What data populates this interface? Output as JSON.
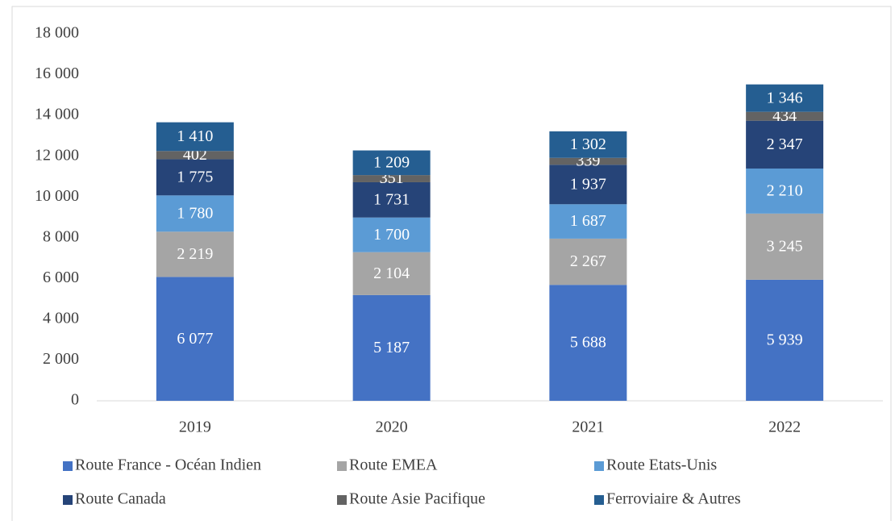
{
  "chart_data": {
    "type": "stacked_bar",
    "categories": [
      "2019",
      "2020",
      "2021",
      "2022"
    ],
    "series": [
      {
        "name": "Route France - Océan Indien",
        "color": "#4472c4",
        "values": [
          6077,
          5187,
          5688,
          5939
        ],
        "value_labels": [
          "6 077",
          "5 187",
          "5 688",
          "5 939"
        ]
      },
      {
        "name": "Route EMEA",
        "color": "#a5a5a5",
        "values": [
          2219,
          2104,
          2267,
          3245
        ],
        "value_labels": [
          "2 219",
          "2 104",
          "2 267",
          "3 245"
        ]
      },
      {
        "name": "Route Etats-Unis",
        "color": "#5b9bd5",
        "values": [
          1780,
          1700,
          1687,
          2210
        ],
        "value_labels": [
          "1 780",
          "1 700",
          "1 687",
          "2 210"
        ]
      },
      {
        "name": "Route Canada",
        "color": "#264478",
        "values": [
          1775,
          1731,
          1937,
          2347
        ],
        "value_labels": [
          "1 775",
          "1 731",
          "1 937",
          "2 347"
        ]
      },
      {
        "name": "Route Asie Pacifique",
        "color": "#636363",
        "values": [
          402,
          351,
          339,
          434
        ]
      },
      {
        "name": "Ferroviaire & Autres",
        "color": "#255e91",
        "values": [
          1410,
          1209,
          1302,
          1346
        ],
        "value_labels": [
          "1 410",
          "1 209",
          "1 302",
          "1 346"
        ]
      }
    ],
    "ylim": [
      0,
      18000
    ],
    "yticks": [
      0,
      {
        "value": 2000,
        "label": "2 000"
      },
      {
        "value": 4000,
        "label": "4 000"
      },
      {
        "value": 6000,
        "label": "6 000"
      },
      {
        "value": 8000,
        "label": "8 000"
      },
      {
        "value": 10000,
        "label": "10 000"
      },
      {
        "value": 12000,
        "label": "12 000"
      },
      {
        "value": 14000,
        "label": "14 000"
      },
      {
        "value": 16000,
        "label": "16 000"
      },
      {
        "value": 18000,
        "label": "18 000"
      }
    ],
    "legend": "bottom"
  }
}
